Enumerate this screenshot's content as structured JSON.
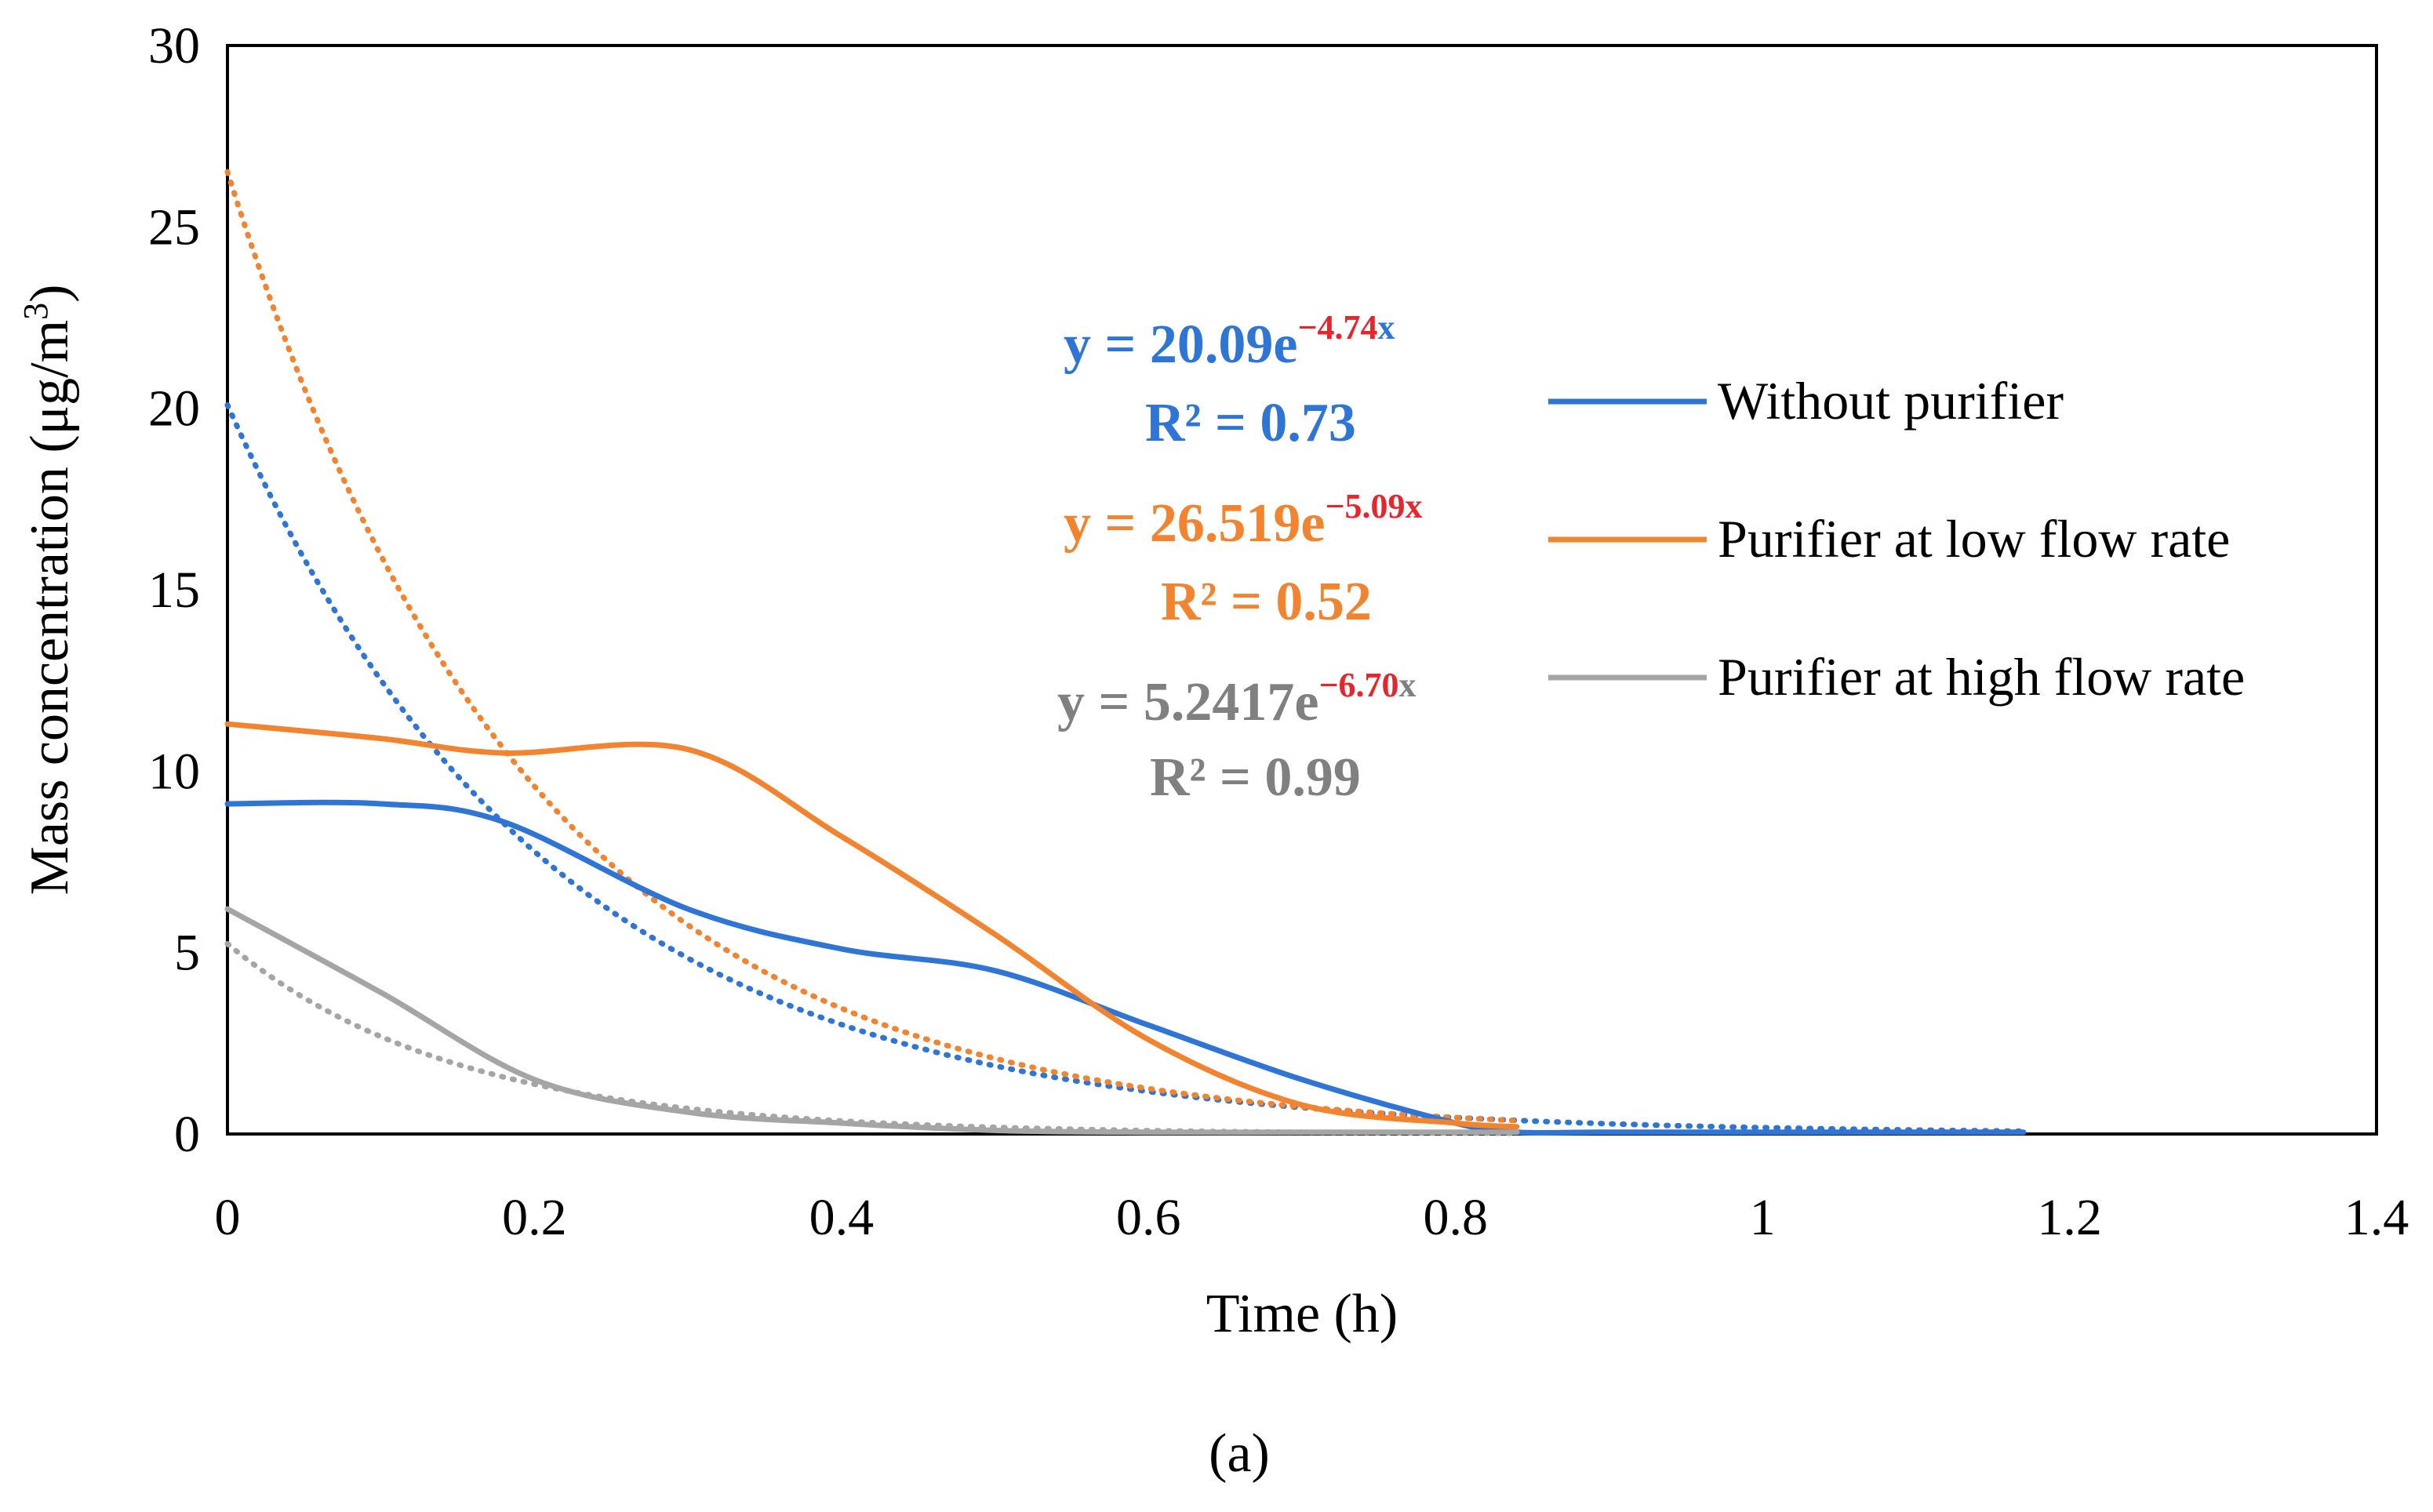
{
  "chart_data": {
    "type": "line",
    "panel_label": "(a)",
    "xlabel": "Time (h)",
    "ylabel": {
      "prefix": "Mass concentration (μg/m",
      "sup": "3",
      "suffix": ")"
    },
    "xlim": [
      0,
      1.4
    ],
    "ylim": [
      0,
      30
    ],
    "x_ticks": [
      "0",
      "0.2",
      "0.4",
      "0.6",
      "0.8",
      "1",
      "1.2",
      "1.4"
    ],
    "y_ticks": [
      "0",
      "5",
      "10",
      "15",
      "20",
      "25",
      "30"
    ],
    "x_tick_values": [
      0,
      0.2,
      0.4,
      0.6,
      0.8,
      1,
      1.2,
      1.4
    ],
    "y_tick_values": [
      0,
      5,
      10,
      15,
      20,
      25,
      30
    ],
    "grid": false,
    "legend_position": "right",
    "series": [
      {
        "name": "Without purifier",
        "color": "#2e75d6",
        "x": [
          0,
          0.1,
          0.18,
          0.3,
          0.4,
          0.5,
          0.6,
          0.7,
          0.8,
          0.84,
          0.9,
          1.0,
          1.1,
          1.17
        ],
        "values": [
          9.1,
          9.1,
          8.6,
          6.2,
          5.1,
          4.5,
          3.0,
          1.5,
          0.3,
          0.05,
          0.05,
          0.05,
          0.05,
          0.05
        ]
      },
      {
        "name": "Purifier at low flow rate",
        "color": "#f28430",
        "x": [
          0,
          0.1,
          0.18,
          0.3,
          0.4,
          0.5,
          0.6,
          0.7,
          0.8,
          0.84
        ],
        "values": [
          11.3,
          10.9,
          10.5,
          10.6,
          8.2,
          5.5,
          2.6,
          0.8,
          0.3,
          0.2
        ]
      },
      {
        "name": "Purifier at high flow rate",
        "color": "#a5a5a5",
        "x": [
          0,
          0.1,
          0.2,
          0.3,
          0.4,
          0.5,
          0.6,
          0.7,
          0.8,
          0.84
        ],
        "values": [
          6.2,
          3.9,
          1.5,
          0.6,
          0.3,
          0.1,
          0.05,
          0.05,
          0.05,
          0.05
        ]
      }
    ],
    "trendlines": [
      {
        "series": "Without purifier",
        "a": 20.09,
        "b": -4.74,
        "x_end": 1.17,
        "color": "#2e75d6"
      },
      {
        "series": "Purifier at low flow rate",
        "a": 26.519,
        "b": -5.09,
        "x_end": 0.84,
        "color": "#f28430"
      },
      {
        "series": "Purifier at high flow rate",
        "a": 5.2417,
        "b": -6.7,
        "x_end": 0.84,
        "color": "#a5a5a5"
      }
    ],
    "annotations": [
      {
        "base": "y = 20.09e",
        "exp_sign": "−",
        "exp_value": "4.74",
        "var": "x",
        "r2": "R² = 0.73",
        "color": "#2e75d6",
        "exp_color": "#e8242c"
      },
      {
        "base": "y = 26.519e",
        "exp_sign": "−",
        "exp_value": "5.09",
        "var": "x",
        "r2": "R² = 0.52",
        "color": "#f28430",
        "exp_color": "#e8242c"
      },
      {
        "base": "y = 5.2417e",
        "exp_sign": "−",
        "exp_value": "6.70",
        "var": "x",
        "r2": "R² = 0.99",
        "color": "#808080",
        "exp_color": "#e8242c"
      }
    ]
  }
}
